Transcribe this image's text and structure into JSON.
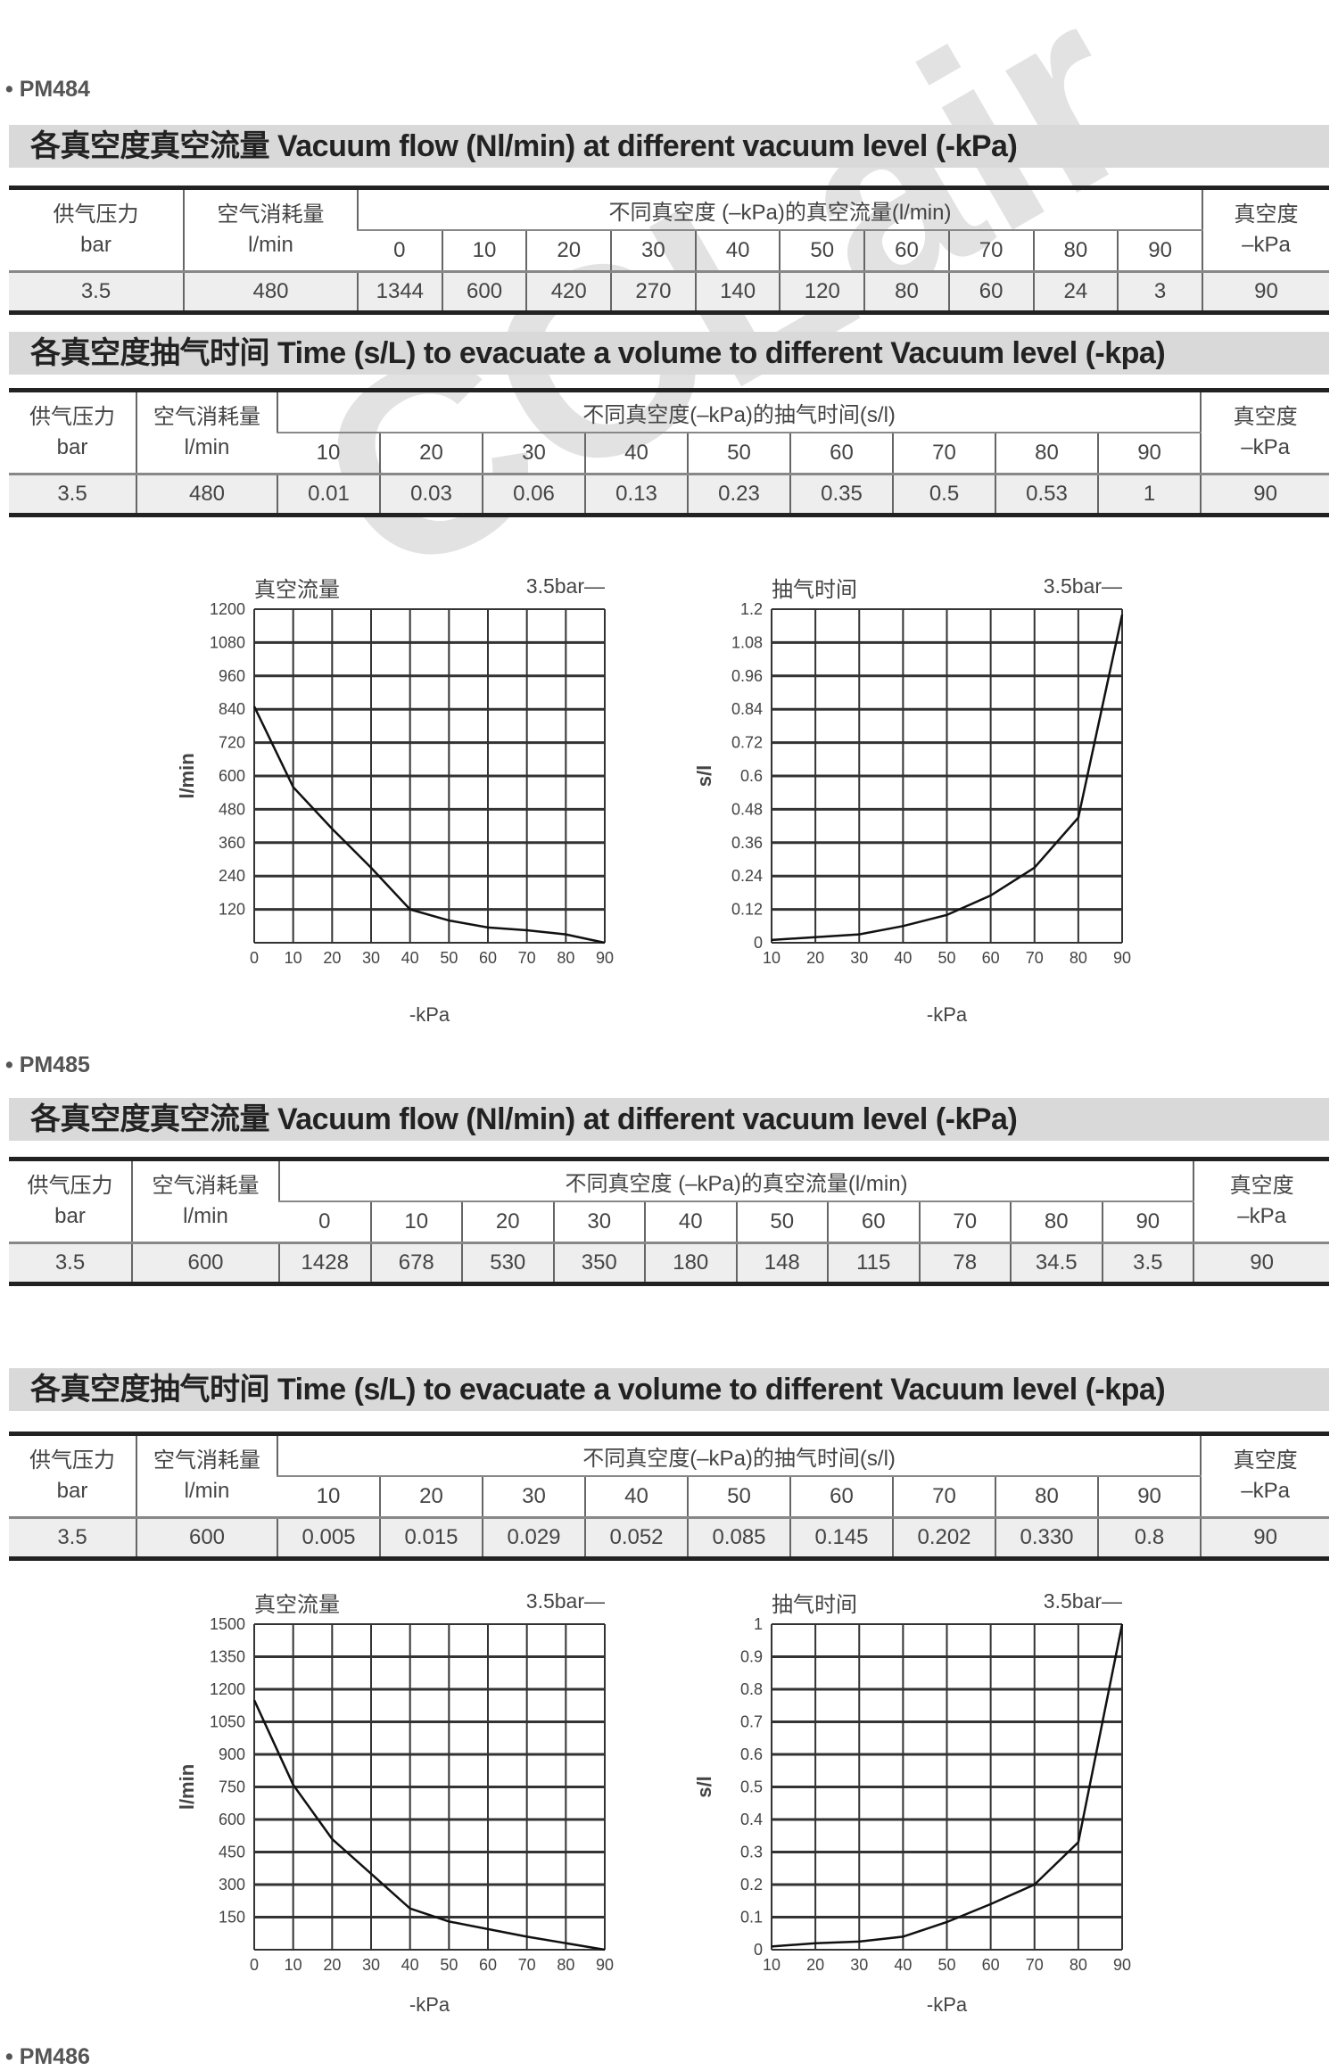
{
  "watermark": "CCLair",
  "sections": [
    {
      "model": "• PM484",
      "flow_title": "各真空度真空流量 Vacuum flow (Nl/min) at different vacuum level (-kPa)",
      "time_title": "各真空度抽气时间 Time (s/L) to evacuate a volume to different Vacuum level (-kpa)"
    },
    {
      "model": "• PM485",
      "flow_title": "各真空度真空流量 Vacuum flow (Nl/min) at different vacuum level (-kPa)",
      "time_title": "各真空度抽气时间 Time (s/L) to evacuate a volume to different Vacuum level (-kpa)"
    },
    {
      "model": "• PM486"
    }
  ],
  "tables": [
    {
      "supply_label": "供气压力",
      "supply_unit": "bar",
      "consumption_label": "空气消耗量",
      "consumption_unit": "l/min",
      "group_label": "不同真空度 (–kPa)的真空流量(l/min)",
      "columns": [
        "0",
        "10",
        "20",
        "30",
        "40",
        "50",
        "60",
        "70",
        "80",
        "90"
      ],
      "vacuum_label": "真空度",
      "vacuum_unit": "–kPa",
      "row": {
        "supply": "3.5",
        "consumption": "480",
        "values": [
          "1344",
          "600",
          "420",
          "270",
          "140",
          "120",
          "80",
          "60",
          "24",
          "3"
        ],
        "vacuum": "90"
      }
    },
    {
      "supply_label": "供气压力",
      "supply_unit": "bar",
      "consumption_label": "空气消耗量",
      "consumption_unit": "l/min",
      "group_label": "不同真空度(–kPa)的抽气时间(s/l)",
      "columns": [
        "10",
        "20",
        "30",
        "40",
        "50",
        "60",
        "70",
        "80",
        "90"
      ],
      "vacuum_label": "真空度",
      "vacuum_unit": "–kPa",
      "row": {
        "supply": "3.5",
        "consumption": "480",
        "values": [
          "0.01",
          "0.03",
          "0.06",
          "0.13",
          "0.23",
          "0.35",
          "0.5",
          "0.53",
          "1"
        ],
        "vacuum": "90"
      }
    },
    {
      "supply_label": "供气压力",
      "supply_unit": "bar",
      "consumption_label": "空气消耗量",
      "consumption_unit": "l/min",
      "group_label": "不同真空度 (–kPa)的真空流量(l/min)",
      "columns": [
        "0",
        "10",
        "20",
        "30",
        "40",
        "50",
        "60",
        "70",
        "80",
        "90"
      ],
      "vacuum_label": "真空度",
      "vacuum_unit": "–kPa",
      "row": {
        "supply": "3.5",
        "consumption": "600",
        "values": [
          "1428",
          "678",
          "530",
          "350",
          "180",
          "148",
          "115",
          "78",
          "34.5",
          "3.5"
        ],
        "vacuum": "90"
      }
    },
    {
      "supply_label": "供气压力",
      "supply_unit": "bar",
      "consumption_label": "空气消耗量",
      "consumption_unit": "l/min",
      "group_label": "不同真空度(–kPa)的抽气时间(s/l)",
      "columns": [
        "10",
        "20",
        "30",
        "40",
        "50",
        "60",
        "70",
        "80",
        "90"
      ],
      "vacuum_label": "真空度",
      "vacuum_unit": "–kPa",
      "row": {
        "supply": "3.5",
        "consumption": "600",
        "values": [
          "0.005",
          "0.015",
          "0.029",
          "0.052",
          "0.085",
          "0.145",
          "0.202",
          "0.330",
          "0.8"
        ],
        "vacuum": "90"
      }
    }
  ],
  "chart_data": [
    {
      "type": "line",
      "title": "真空流量",
      "legend": "3.5bar—",
      "legend_placement": "top-right",
      "xlabel": "-kPa",
      "ylabel": "l/min",
      "grid": true,
      "xlim": [
        0,
        90
      ],
      "ylim": [
        0,
        1200
      ],
      "xticks": [
        "0",
        "10",
        "20",
        "30",
        "40",
        "50",
        "60",
        "70",
        "80",
        "90"
      ],
      "yticks": [
        "120",
        "240",
        "360",
        "480",
        "600",
        "720",
        "840",
        "960",
        "1080",
        "1200"
      ],
      "series": [
        {
          "x": [
            0,
            10,
            20,
            30,
            40,
            50,
            60,
            70,
            80,
            90
          ],
          "y": [
            850,
            560,
            410,
            270,
            120,
            80,
            55,
            45,
            30,
            0
          ]
        }
      ]
    },
    {
      "type": "line",
      "title": "抽气时间",
      "legend": "3.5bar—",
      "legend_placement": "top-right",
      "xlabel": "-kPa",
      "ylabel": "s/l",
      "grid": true,
      "xlim": [
        10,
        90
      ],
      "ylim": [
        0,
        1.2
      ],
      "xticks": [
        "10",
        "20",
        "30",
        "40",
        "50",
        "60",
        "70",
        "80",
        "90"
      ],
      "yticks": [
        "0",
        "0.12",
        "0.24",
        "0.36",
        "0.48",
        "0.6",
        "0.72",
        "0.84",
        "0.96",
        "1.08",
        "1.2"
      ],
      "series": [
        {
          "x": [
            10,
            20,
            30,
            40,
            50,
            60,
            70,
            80,
            90
          ],
          "y": [
            0.01,
            0.02,
            0.03,
            0.06,
            0.1,
            0.17,
            0.27,
            0.45,
            1.18
          ]
        }
      ]
    },
    {
      "type": "line",
      "title": "真空流量",
      "legend": "3.5bar—",
      "legend_placement": "top-right",
      "xlabel": "-kPa",
      "ylabel": "l/min",
      "grid": true,
      "xlim": [
        0,
        90
      ],
      "ylim": [
        0,
        1500
      ],
      "xticks": [
        "0",
        "10",
        "20",
        "30",
        "40",
        "50",
        "60",
        "70",
        "80",
        "90"
      ],
      "yticks": [
        "150",
        "300",
        "450",
        "600",
        "750",
        "900",
        "1050",
        "1200",
        "1350",
        "1500"
      ],
      "series": [
        {
          "x": [
            0,
            10,
            20,
            30,
            40,
            50,
            60,
            70,
            80,
            90
          ],
          "y": [
            1150,
            760,
            510,
            350,
            190,
            130,
            95,
            60,
            30,
            0
          ]
        }
      ]
    },
    {
      "type": "line",
      "title": "抽气时间",
      "legend": "3.5bar—",
      "legend_placement": "top-right",
      "xlabel": "-kPa",
      "ylabel": "s/l",
      "grid": true,
      "xlim": [
        10,
        90
      ],
      "ylim": [
        0,
        1
      ],
      "xticks": [
        "10",
        "20",
        "30",
        "40",
        "50",
        "60",
        "70",
        "80",
        "90"
      ],
      "yticks": [
        "0",
        "0.1",
        "0.2",
        "0.3",
        "0.4",
        "0.5",
        "0.6",
        "0.7",
        "0.8",
        "0.9",
        "1"
      ],
      "series": [
        {
          "x": [
            10,
            20,
            30,
            40,
            50,
            60,
            70,
            80,
            90
          ],
          "y": [
            0.01,
            0.02,
            0.025,
            0.04,
            0.085,
            0.14,
            0.2,
            0.33,
            1.0
          ]
        }
      ]
    }
  ]
}
